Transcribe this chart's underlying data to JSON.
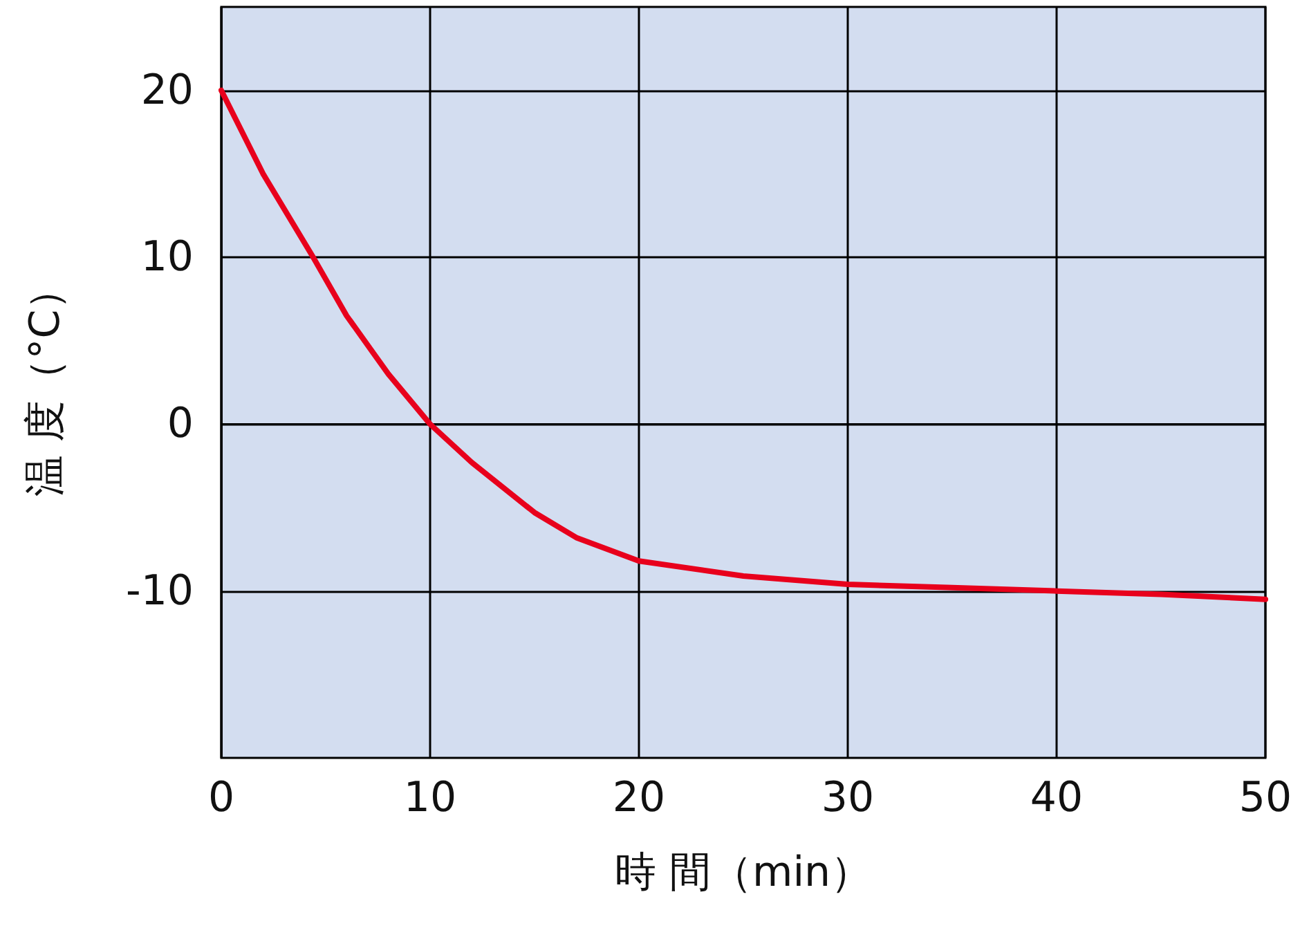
{
  "chart_data": {
    "type": "line",
    "xlabel": "時 間（min）",
    "ylabel": "温 度（°C）",
    "x": [
      0,
      2,
      4.4,
      6,
      8,
      10,
      12,
      15,
      17,
      20,
      25,
      30,
      35,
      40,
      45,
      50
    ],
    "series": [
      {
        "color": "#e8001c",
        "values": [
          20,
          15,
          10,
          6.5,
          3,
          0,
          -2.3,
          -5.3,
          -6.8,
          -8.2,
          -9.1,
          -9.6,
          -9.8,
          -10,
          -10.2,
          -10.5
        ]
      }
    ],
    "xlim": [
      0,
      50
    ],
    "xticks": [
      0,
      10,
      20,
      30,
      40,
      50
    ],
    "ylim": [
      -20,
      25
    ],
    "yticks": [
      -10,
      0,
      10,
      20
    ],
    "grid": true,
    "marker": "none",
    "line_style": "solid"
  }
}
